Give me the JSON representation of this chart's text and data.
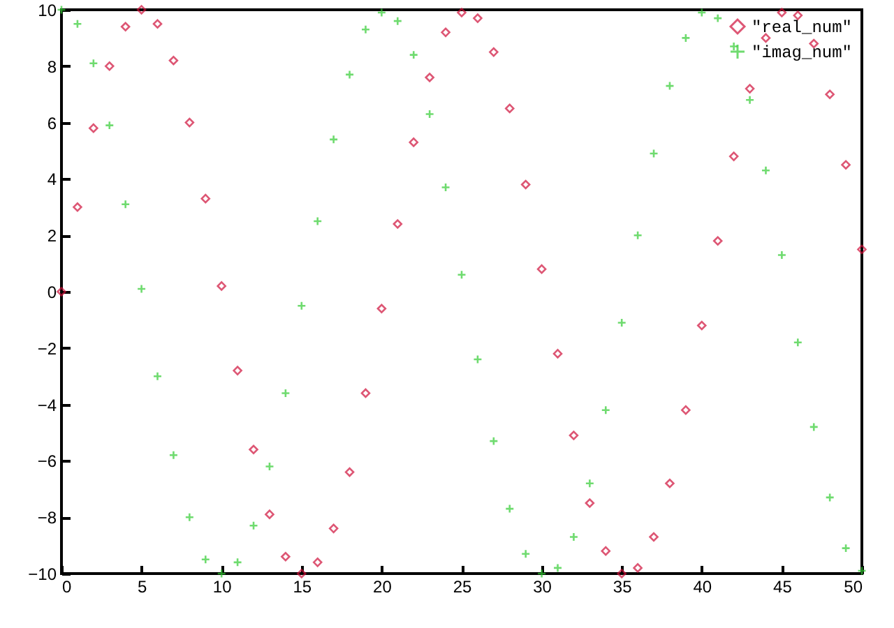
{
  "chart_data": {
    "type": "scatter",
    "x": [
      0,
      1,
      2,
      3,
      4,
      5,
      6,
      7,
      8,
      9,
      10,
      11,
      12,
      13,
      14,
      15,
      16,
      17,
      18,
      19,
      20,
      21,
      22,
      23,
      24,
      25,
      26,
      27,
      28,
      29,
      30,
      31,
      32,
      33,
      34,
      35,
      36,
      37,
      38,
      39,
      40,
      41,
      42,
      43,
      44,
      45,
      46,
      47,
      48,
      49,
      50
    ],
    "series": [
      {
        "name": "\"real_num\"",
        "color": "#d0103a",
        "marker": "diamond",
        "values": [
          0,
          3.0,
          5.8,
          8.0,
          9.4,
          10,
          9.5,
          8.2,
          6.0,
          3.3,
          0.2,
          -2.8,
          -5.6,
          -7.9,
          -9.4,
          -10,
          -9.6,
          -8.4,
          -6.4,
          -3.6,
          -0.6,
          2.4,
          5.3,
          7.6,
          9.2,
          9.9,
          9.7,
          8.5,
          6.5,
          3.8,
          0.8,
          -2.2,
          -5.1,
          -7.5,
          -9.2,
          -10,
          -9.8,
          -8.7,
          -6.8,
          -4.2,
          -1.2,
          1.8,
          4.8,
          7.2,
          9.0,
          9.9,
          9.8,
          8.8,
          7.0,
          4.5,
          1.5
        ]
      },
      {
        "name": "\"imag_num\"",
        "color": "#33cc33",
        "marker": "cross",
        "values": [
          10,
          9.5,
          8.1,
          5.9,
          3.1,
          0.1,
          -3.0,
          -5.8,
          -8.0,
          -9.5,
          -10,
          -9.6,
          -8.3,
          -6.2,
          -3.6,
          -0.5,
          2.5,
          5.4,
          7.7,
          9.3,
          9.9,
          9.6,
          8.4,
          6.3,
          3.7,
          0.6,
          -2.4,
          -5.3,
          -7.7,
          -9.3,
          -10,
          -9.8,
          -8.7,
          -6.8,
          -4.2,
          -1.1,
          2.0,
          4.9,
          7.3,
          9.0,
          9.9,
          9.7,
          8.7,
          6.8,
          4.3,
          1.3,
          -1.8,
          -4.8,
          -7.3,
          -9.1,
          -9.9
        ]
      }
    ],
    "xlim": [
      0,
      50
    ],
    "xticks": [
      0,
      5,
      10,
      15,
      20,
      25,
      30,
      35,
      40,
      45,
      50
    ],
    "ylim": [
      -10,
      10
    ],
    "yticks": [
      -10,
      -8,
      -6,
      -4,
      -2,
      0,
      2,
      4,
      6,
      8,
      10
    ],
    "legend": "top right"
  }
}
